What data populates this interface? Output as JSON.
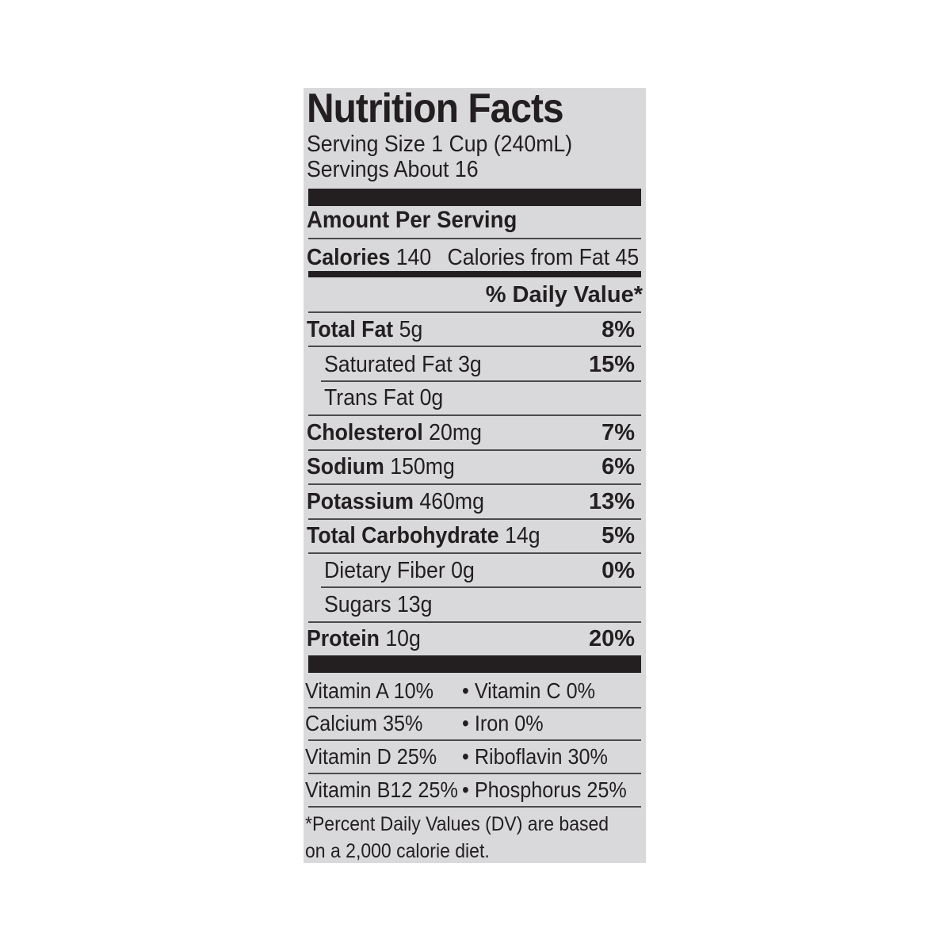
{
  "header": {
    "title": "Nutrition Facts",
    "serving_size": "Serving Size 1 Cup (240mL)",
    "servings": "Servings About 16"
  },
  "amount_per_serving": "Amount Per Serving",
  "calories": {
    "label": "Calories",
    "value": "140",
    "from_fat": "Calories from Fat 45"
  },
  "daily_value_header": "% Daily Value*",
  "nutrients": [
    {
      "name": "Total Fat",
      "amount": "5g",
      "dv": "8%"
    },
    {
      "name": "Saturated Fat",
      "amount": "3g",
      "dv": "15%"
    },
    {
      "name": "Trans Fat",
      "amount": "0g",
      "dv": ""
    },
    {
      "name": "Cholesterol",
      "amount": "20mg",
      "dv": "7%"
    },
    {
      "name": "Sodium",
      "amount": "150mg",
      "dv": "6%"
    },
    {
      "name": "Potassium",
      "amount": "460mg",
      "dv": "13%"
    },
    {
      "name": "Total Carbohydrate",
      "amount": "14g",
      "dv": "5%"
    },
    {
      "name": "Dietary Fiber",
      "amount": "0g",
      "dv": "0%"
    },
    {
      "name": "Sugars",
      "amount": "13g",
      "dv": ""
    },
    {
      "name": "Protein",
      "amount": "10g",
      "dv": "20%"
    }
  ],
  "vitamins": [
    {
      "left": "Vitamin A 10%",
      "right": "• Vitamin C 0%"
    },
    {
      "left": "Calcium 35%",
      "right": "• Iron 0%"
    },
    {
      "left": "Vitamin D 25%",
      "right": "• Riboflavin 30%"
    },
    {
      "left": "Vitamin B12 25%",
      "right": "• Phosphorus 25%"
    }
  ],
  "footnote": "*Percent Daily Values (DV) are based on a 2,000 calorie diet.",
  "colors": {
    "panel": "#d9d9db",
    "ink": "#231f20"
  }
}
